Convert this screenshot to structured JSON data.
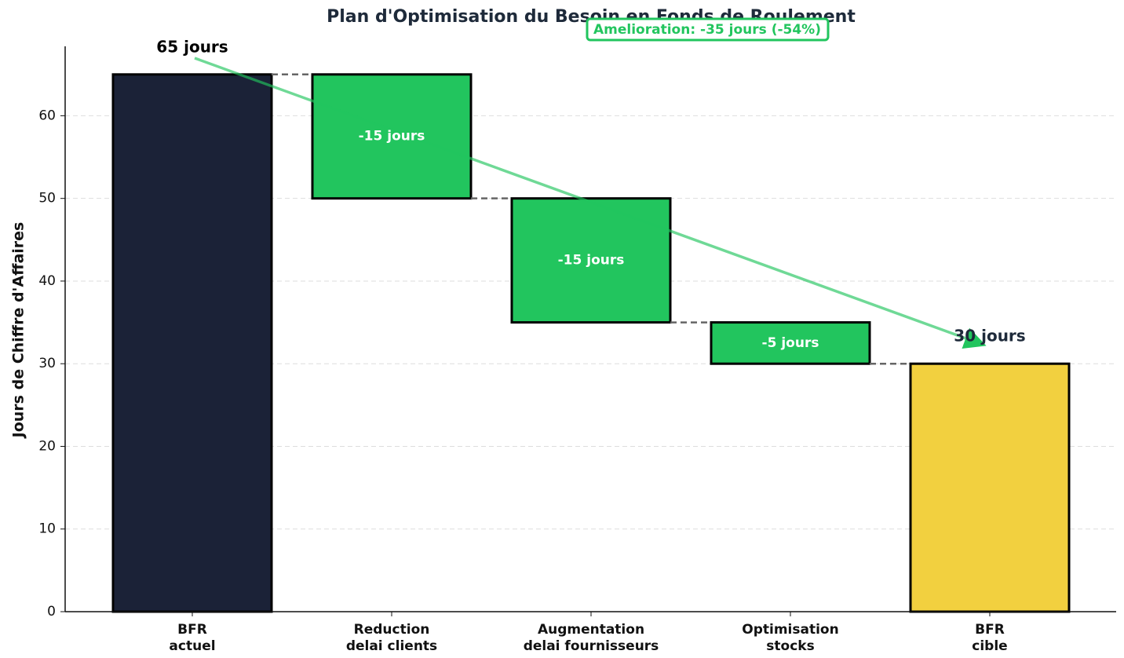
{
  "chart_data": {
    "type": "waterfall",
    "title": "Plan d'Optimisation du Besoin en Fonds de Roulement",
    "y_label": "Jours de Chiffre d'Affaires",
    "annotation": "Amelioration: -35 jours (-54%)",
    "categories": [
      "BFR\nactuel",
      "Reduction\ndelai clients",
      "Augmentation\ndelai fournisseurs",
      "Optimisation\nstocks",
      "BFR\ncible"
    ],
    "values": [
      65,
      -15,
      -15,
      -5,
      30
    ],
    "value_labels": [
      "65 jours",
      "-15 jours",
      "-15 jours",
      "-5 jours",
      "30 jours"
    ],
    "totals": [
      true,
      false,
      false,
      false,
      true
    ],
    "colors": [
      "#1b2237",
      "#22c55e",
      "#22c55e",
      "#22c55e",
      "#f2d03f"
    ],
    "ylim": [
      0,
      68.4
    ],
    "yticks": [
      0,
      10,
      20,
      30,
      40,
      50,
      60
    ],
    "grid": true
  }
}
